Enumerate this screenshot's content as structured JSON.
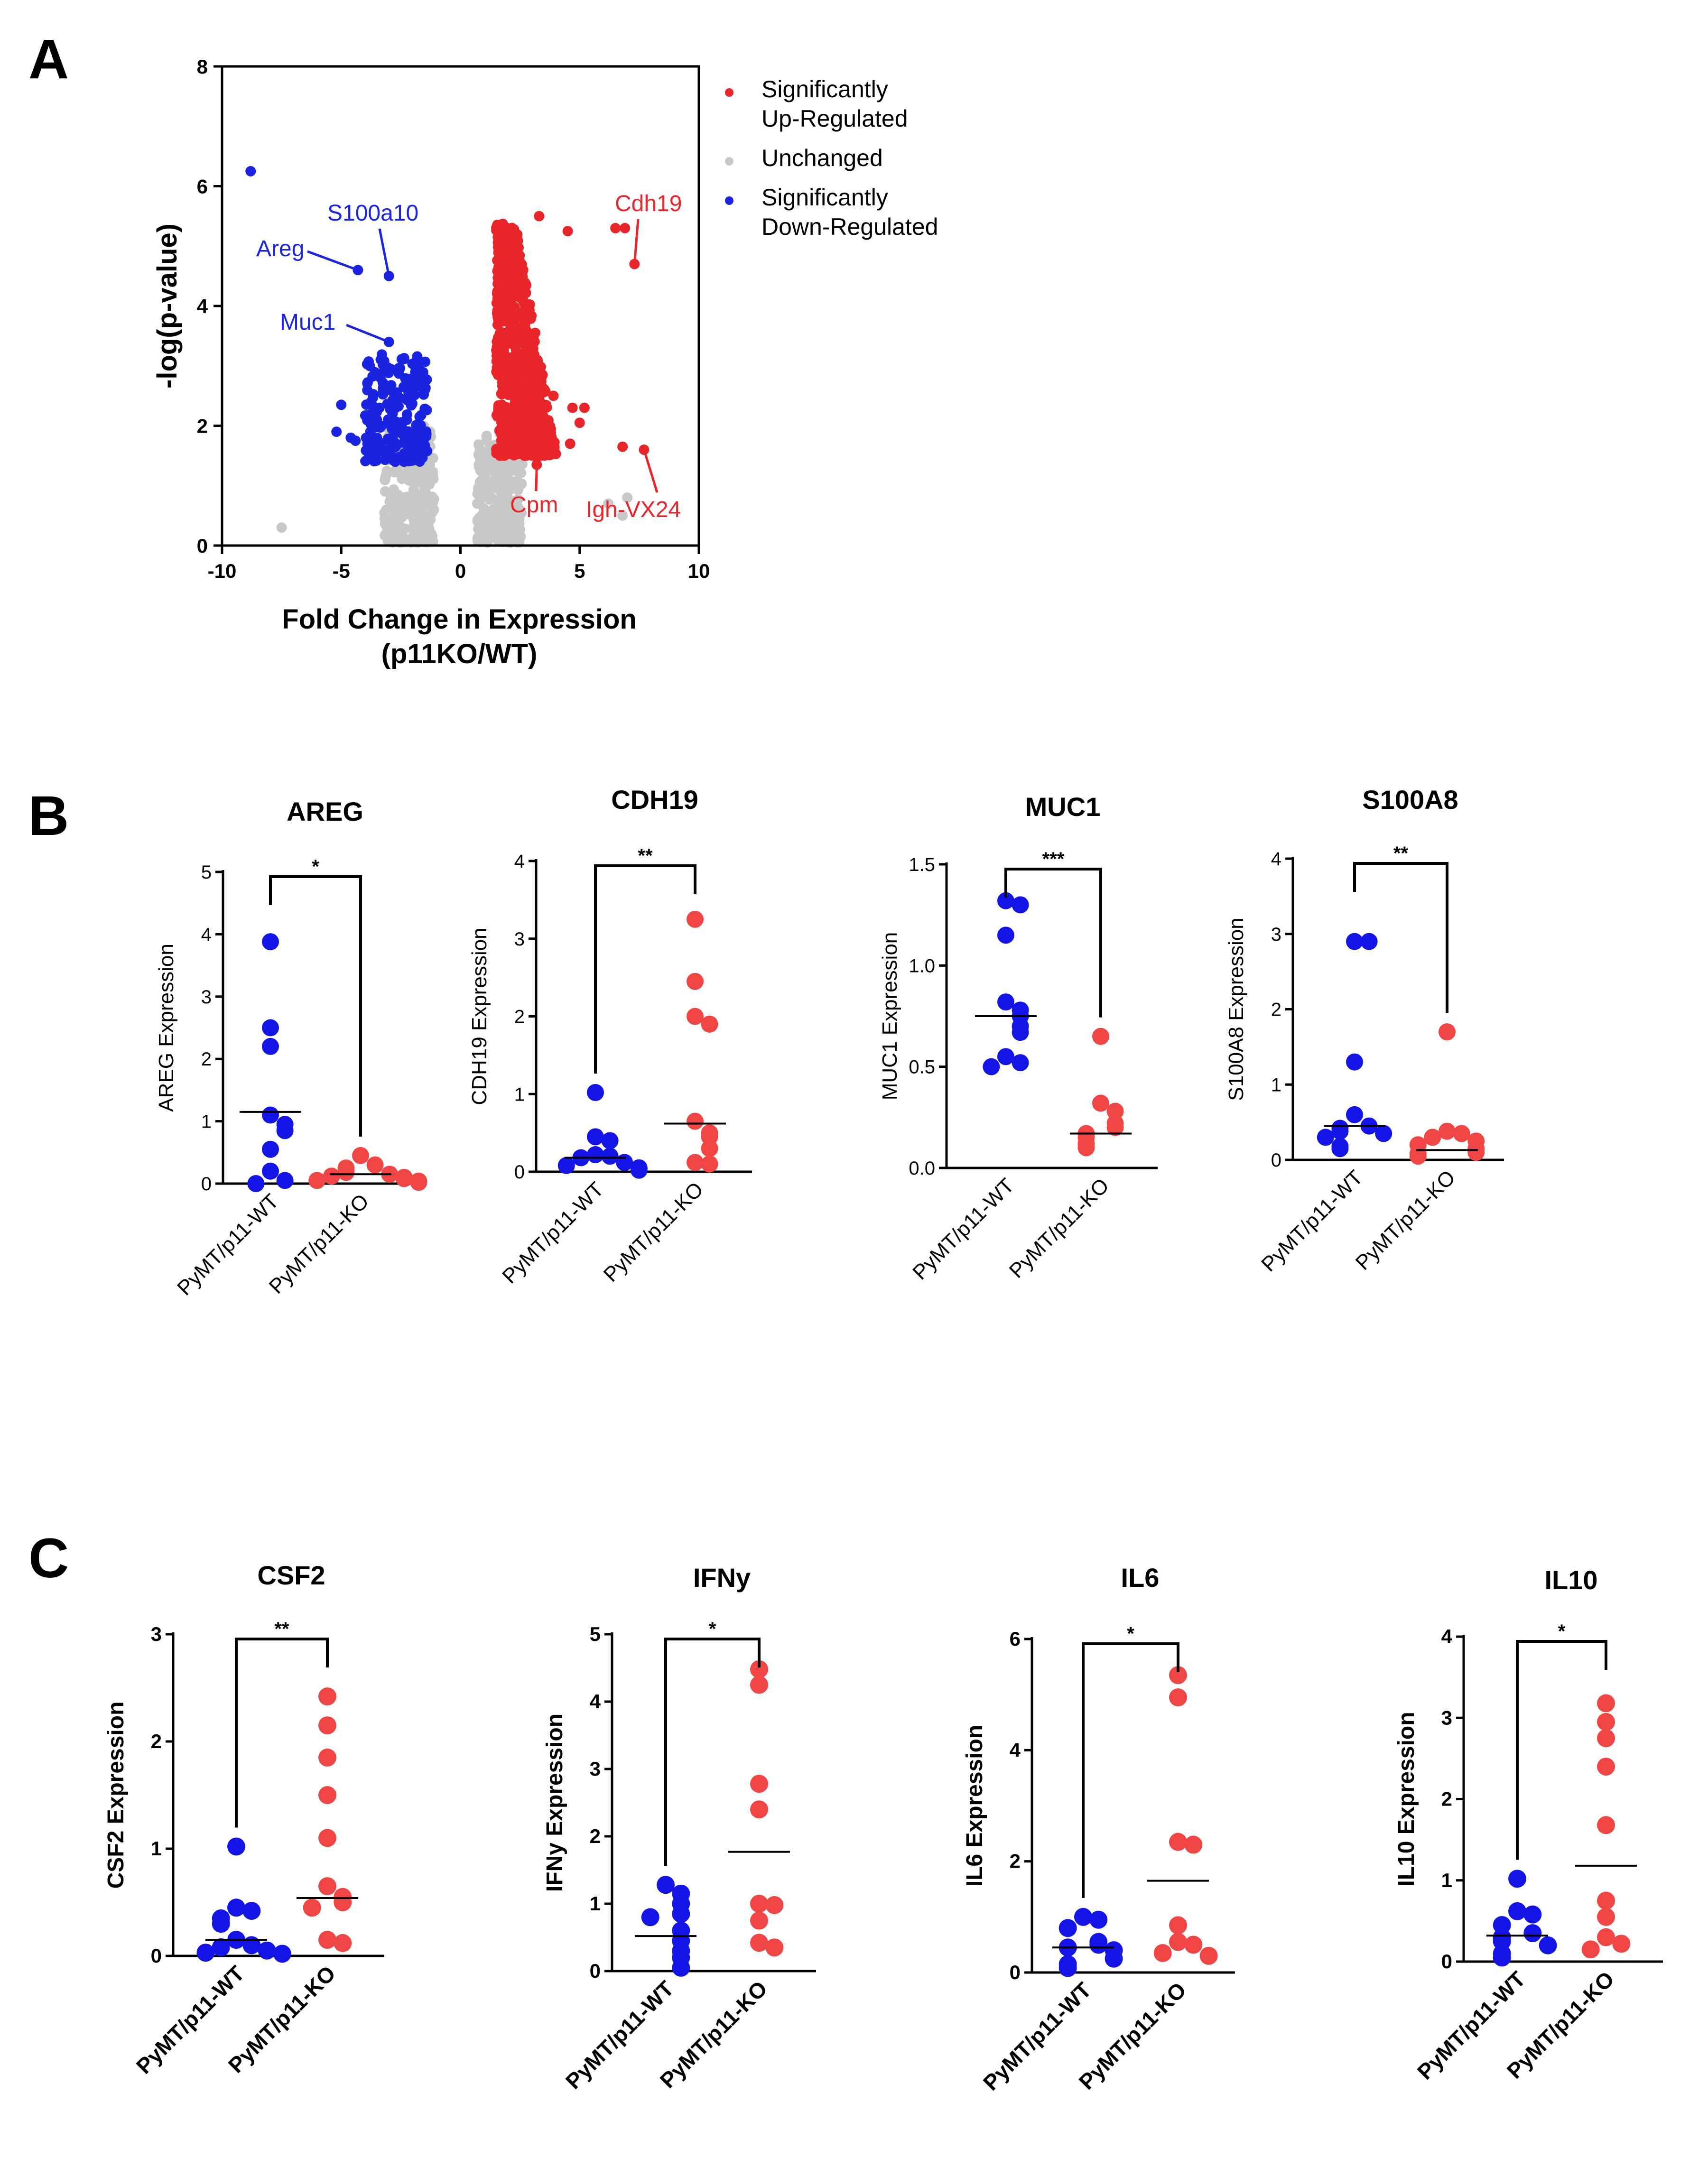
{
  "panels": {
    "A": "A",
    "B": "B",
    "C": "C"
  },
  "colors": {
    "up": "#e8252a",
    "down": "#1b24e0",
    "unchanged": "#c8c8c8",
    "wt": "#1414e6",
    "ko": "#f04545"
  },
  "volcano": {
    "chart_data": {
      "type": "scatter",
      "xlabel_line1": "Fold Change in Expression",
      "xlabel_line2": "(p11KO/WT)",
      "ylabel": "-log(p-value)",
      "xlim": [
        -10,
        10
      ],
      "ylim": [
        0,
        8
      ],
      "xticks": [
        "-10",
        "-5",
        "0",
        "5",
        "10"
      ],
      "yticks": [
        "0",
        "2",
        "4",
        "6",
        "8"
      ],
      "legend": [
        {
          "label": [
            "Significantly",
            "Up-Regulated"
          ],
          "color": "#e8252a"
        },
        {
          "label": [
            "Unchanged"
          ],
          "color": "#c8c8c8"
        },
        {
          "label": [
            "Significantly",
            "Down-Regulated"
          ],
          "color": "#1b24e0"
        }
      ],
      "labeled_points": [
        {
          "name": "Areg",
          "x": -4.3,
          "y": 4.6,
          "color": "#1b24e0"
        },
        {
          "name": "S100a10",
          "x": -3.0,
          "y": 4.5,
          "color": "#1b24e0"
        },
        {
          "name": "Muc1",
          "x": -3.0,
          "y": 3.4,
          "color": "#1b24e0"
        },
        {
          "name": "Cdh19",
          "x": 7.3,
          "y": 4.7,
          "color": "#e8252a"
        },
        {
          "name": "Cpm",
          "x": 3.2,
          "y": 1.35,
          "color": "#e8252a"
        },
        {
          "name": "Igh-VX24",
          "x": 7.7,
          "y": 1.6,
          "color": "#e8252a"
        }
      ],
      "outlier_points": {
        "down": [
          [
            -8.8,
            6.25
          ],
          [
            -5.2,
            1.9
          ],
          [
            -5.0,
            2.35
          ],
          [
            -4.4,
            1.75
          ],
          [
            -3.9,
            1.7
          ],
          [
            -3.5,
            1.8
          ],
          [
            -3.4,
            2.3
          ],
          [
            -4.6,
            1.8
          ]
        ],
        "up": [
          [
            6.5,
            5.3
          ],
          [
            6.9,
            5.3
          ],
          [
            4.5,
            5.25
          ],
          [
            3.3,
            5.5
          ],
          [
            6.8,
            1.65
          ],
          [
            5.2,
            2.3
          ],
          [
            5.0,
            2.05
          ],
          [
            4.6,
            1.7
          ],
          [
            4.7,
            2.3
          ],
          [
            3.9,
            2.5
          ]
        ],
        "unchanged": [
          [
            7.0,
            0.8
          ],
          [
            6.8,
            0.5
          ],
          [
            6.2,
            0.7
          ],
          [
            -7.5,
            0.3
          ]
        ]
      },
      "clouds": {
        "unchanged_left": {
          "xmin": -3.2,
          "xmax": -1.1,
          "ymin": 0.05,
          "ymax": 2.0
        },
        "unchanged_right": {
          "xmin": 0.7,
          "xmax": 2.6,
          "ymin": 0.05,
          "ymax": 1.9
        },
        "down": {
          "xmin": -4.0,
          "xmax": -1.4,
          "ymin": 1.4,
          "ymax": 3.2
        },
        "up": {
          "xmin": 1.4,
          "xmax": 4.6,
          "ymin": 1.5,
          "ymax": 5.4
        }
      }
    }
  },
  "dotplots": [
    {
      "id": "areg",
      "row": "B",
      "title": "AREG",
      "ylabel": "AREG Expression",
      "ylim": [
        0,
        5
      ],
      "yticks": [
        0,
        1,
        2,
        3,
        4,
        5
      ],
      "tick_labels": [
        "0",
        "1",
        "2",
        "3",
        "4",
        "5"
      ],
      "groups": [
        "PyMT/p11-WT",
        "PyMT/p11-KO"
      ],
      "stars": "*",
      "wt": [
        3.88,
        2.5,
        2.2,
        1.1,
        0.95,
        0.85,
        0.55,
        0.2,
        0.05,
        0.0
      ],
      "ko": [
        0.45,
        0.3,
        0.25,
        0.18,
        0.15,
        0.12,
        0.1,
        0.08,
        0.05,
        0.04,
        0.02
      ],
      "wt_mean": 1.15,
      "ko_mean": 0.15
    },
    {
      "id": "cdh19",
      "row": "B",
      "title": "CDH19",
      "ylabel": "CDH19 Expression",
      "ylim": [
        0,
        4
      ],
      "yticks": [
        0,
        1,
        2,
        3,
        4
      ],
      "tick_labels": [
        "0",
        "1",
        "2",
        "3",
        "4"
      ],
      "groups": [
        "PyMT/p11-WT",
        "PyMT/p11-KO"
      ],
      "stars": "**",
      "wt": [
        1.02,
        0.45,
        0.4,
        0.22,
        0.2,
        0.18,
        0.12,
        0.08,
        0.05,
        0.04,
        0.02
      ],
      "ko": [
        3.25,
        2.45,
        2.0,
        1.9,
        0.65,
        0.5,
        0.45,
        0.3,
        0.12,
        0.1
      ],
      "wt_mean": 0.18,
      "ko_mean": 0.62
    },
    {
      "id": "muc1",
      "row": "B",
      "title": "MUC1",
      "ylabel": "MUC1 Expression",
      "ylim": [
        0,
        1.5
      ],
      "yticks": [
        0,
        0.5,
        1.0,
        1.5
      ],
      "tick_labels": [
        "0.0",
        "0.5",
        "1.0",
        "1.5"
      ],
      "groups": [
        "PyMT/p11-WT",
        "PyMT/p11-KO"
      ],
      "stars": "***",
      "wt": [
        1.32,
        1.3,
        1.15,
        0.82,
        0.78,
        0.75,
        0.7,
        0.67,
        0.55,
        0.52,
        0.5
      ],
      "ko": [
        0.65,
        0.32,
        0.28,
        0.22,
        0.2,
        0.17,
        0.15,
        0.12,
        0.1
      ],
      "wt_mean": 0.75,
      "ko_mean": 0.17
    },
    {
      "id": "s100a8",
      "row": "B",
      "title": "S100A8",
      "ylabel": "S100A8 Expression",
      "ylim": [
        0,
        4
      ],
      "yticks": [
        0,
        1,
        2,
        3,
        4
      ],
      "tick_labels": [
        "0",
        "1",
        "2",
        "3",
        "4"
      ],
      "groups": [
        "PyMT/p11-WT",
        "PyMT/p11-KO"
      ],
      "stars": "**",
      "wt": [
        2.9,
        2.9,
        1.3,
        0.6,
        0.45,
        0.42,
        0.38,
        0.35,
        0.3,
        0.18,
        0.15
      ],
      "ko": [
        1.7,
        0.38,
        0.35,
        0.3,
        0.25,
        0.2,
        0.15,
        0.1,
        0.08,
        0.05
      ],
      "wt_mean": 0.45,
      "ko_mean": 0.13
    },
    {
      "id": "csf2",
      "row": "C",
      "title": "CSF2",
      "ylabel": "CSF2 Expression",
      "ylim": [
        0,
        3
      ],
      "yticks": [
        0,
        1,
        2,
        3
      ],
      "tick_labels": [
        "0",
        "1",
        "2",
        "3"
      ],
      "groups": [
        "PyMT/p11-WT",
        "PyMT/p11-KO"
      ],
      "stars": "**",
      "wt": [
        1.02,
        0.45,
        0.42,
        0.35,
        0.3,
        0.15,
        0.1,
        0.08,
        0.05,
        0.03,
        0.02
      ],
      "ko": [
        2.42,
        2.15,
        1.85,
        1.5,
        1.1,
        0.65,
        0.55,
        0.5,
        0.45,
        0.15,
        0.12
      ],
      "wt_mean": 0.15,
      "ko_mean": 0.54
    },
    {
      "id": "ifny",
      "row": "C",
      "title": "IFNy",
      "ylabel": "IFNy Expression",
      "ylim": [
        0,
        5
      ],
      "yticks": [
        0,
        1,
        2,
        3,
        4,
        5
      ],
      "tick_labels": [
        "0",
        "1",
        "2",
        "3",
        "4",
        "5"
      ],
      "groups": [
        "PyMT/p11-WT",
        "PyMT/p11-KO"
      ],
      "stars": "*",
      "wt": [
        1.28,
        1.15,
        1.0,
        0.85,
        0.8,
        0.6,
        0.45,
        0.3,
        0.2,
        0.05
      ],
      "ko": [
        4.48,
        4.25,
        2.78,
        2.4,
        1.0,
        0.98,
        0.75,
        0.42,
        0.35
      ],
      "wt_mean": 0.52,
      "ko_mean": 1.77
    },
    {
      "id": "il6",
      "row": "C",
      "title": "IL6",
      "ylabel": "IL6 Expression",
      "ylim": [
        0,
        6
      ],
      "yticks": [
        0,
        2,
        4,
        6
      ],
      "tick_labels": [
        "0",
        "2",
        "4",
        "6"
      ],
      "groups": [
        "PyMT/p11-WT",
        "PyMT/p11-KO"
      ],
      "stars": "*",
      "wt": [
        1.0,
        0.95,
        0.8,
        0.55,
        0.5,
        0.45,
        0.4,
        0.25,
        0.15,
        0.08
      ],
      "ko": [
        5.35,
        4.95,
        2.35,
        2.3,
        0.85,
        0.55,
        0.5,
        0.35,
        0.3
      ],
      "wt_mean": 0.45,
      "ko_mean": 1.65
    },
    {
      "id": "il10",
      "row": "C",
      "title": "IL10",
      "ylabel": "IL10 Expression",
      "ylim": [
        0,
        4
      ],
      "yticks": [
        0,
        1,
        2,
        3,
        4
      ],
      "tick_labels": [
        "0",
        "1",
        "2",
        "3",
        "4"
      ],
      "groups": [
        "PyMT/p11-WT",
        "PyMT/p11-KO"
      ],
      "stars": "*",
      "wt": [
        1.02,
        0.62,
        0.58,
        0.45,
        0.35,
        0.3,
        0.25,
        0.2,
        0.1,
        0.05
      ],
      "ko": [
        3.18,
        2.95,
        2.75,
        2.4,
        1.68,
        0.75,
        0.55,
        0.3,
        0.22,
        0.15
      ],
      "wt_mean": 0.32,
      "ko_mean": 1.18
    }
  ]
}
